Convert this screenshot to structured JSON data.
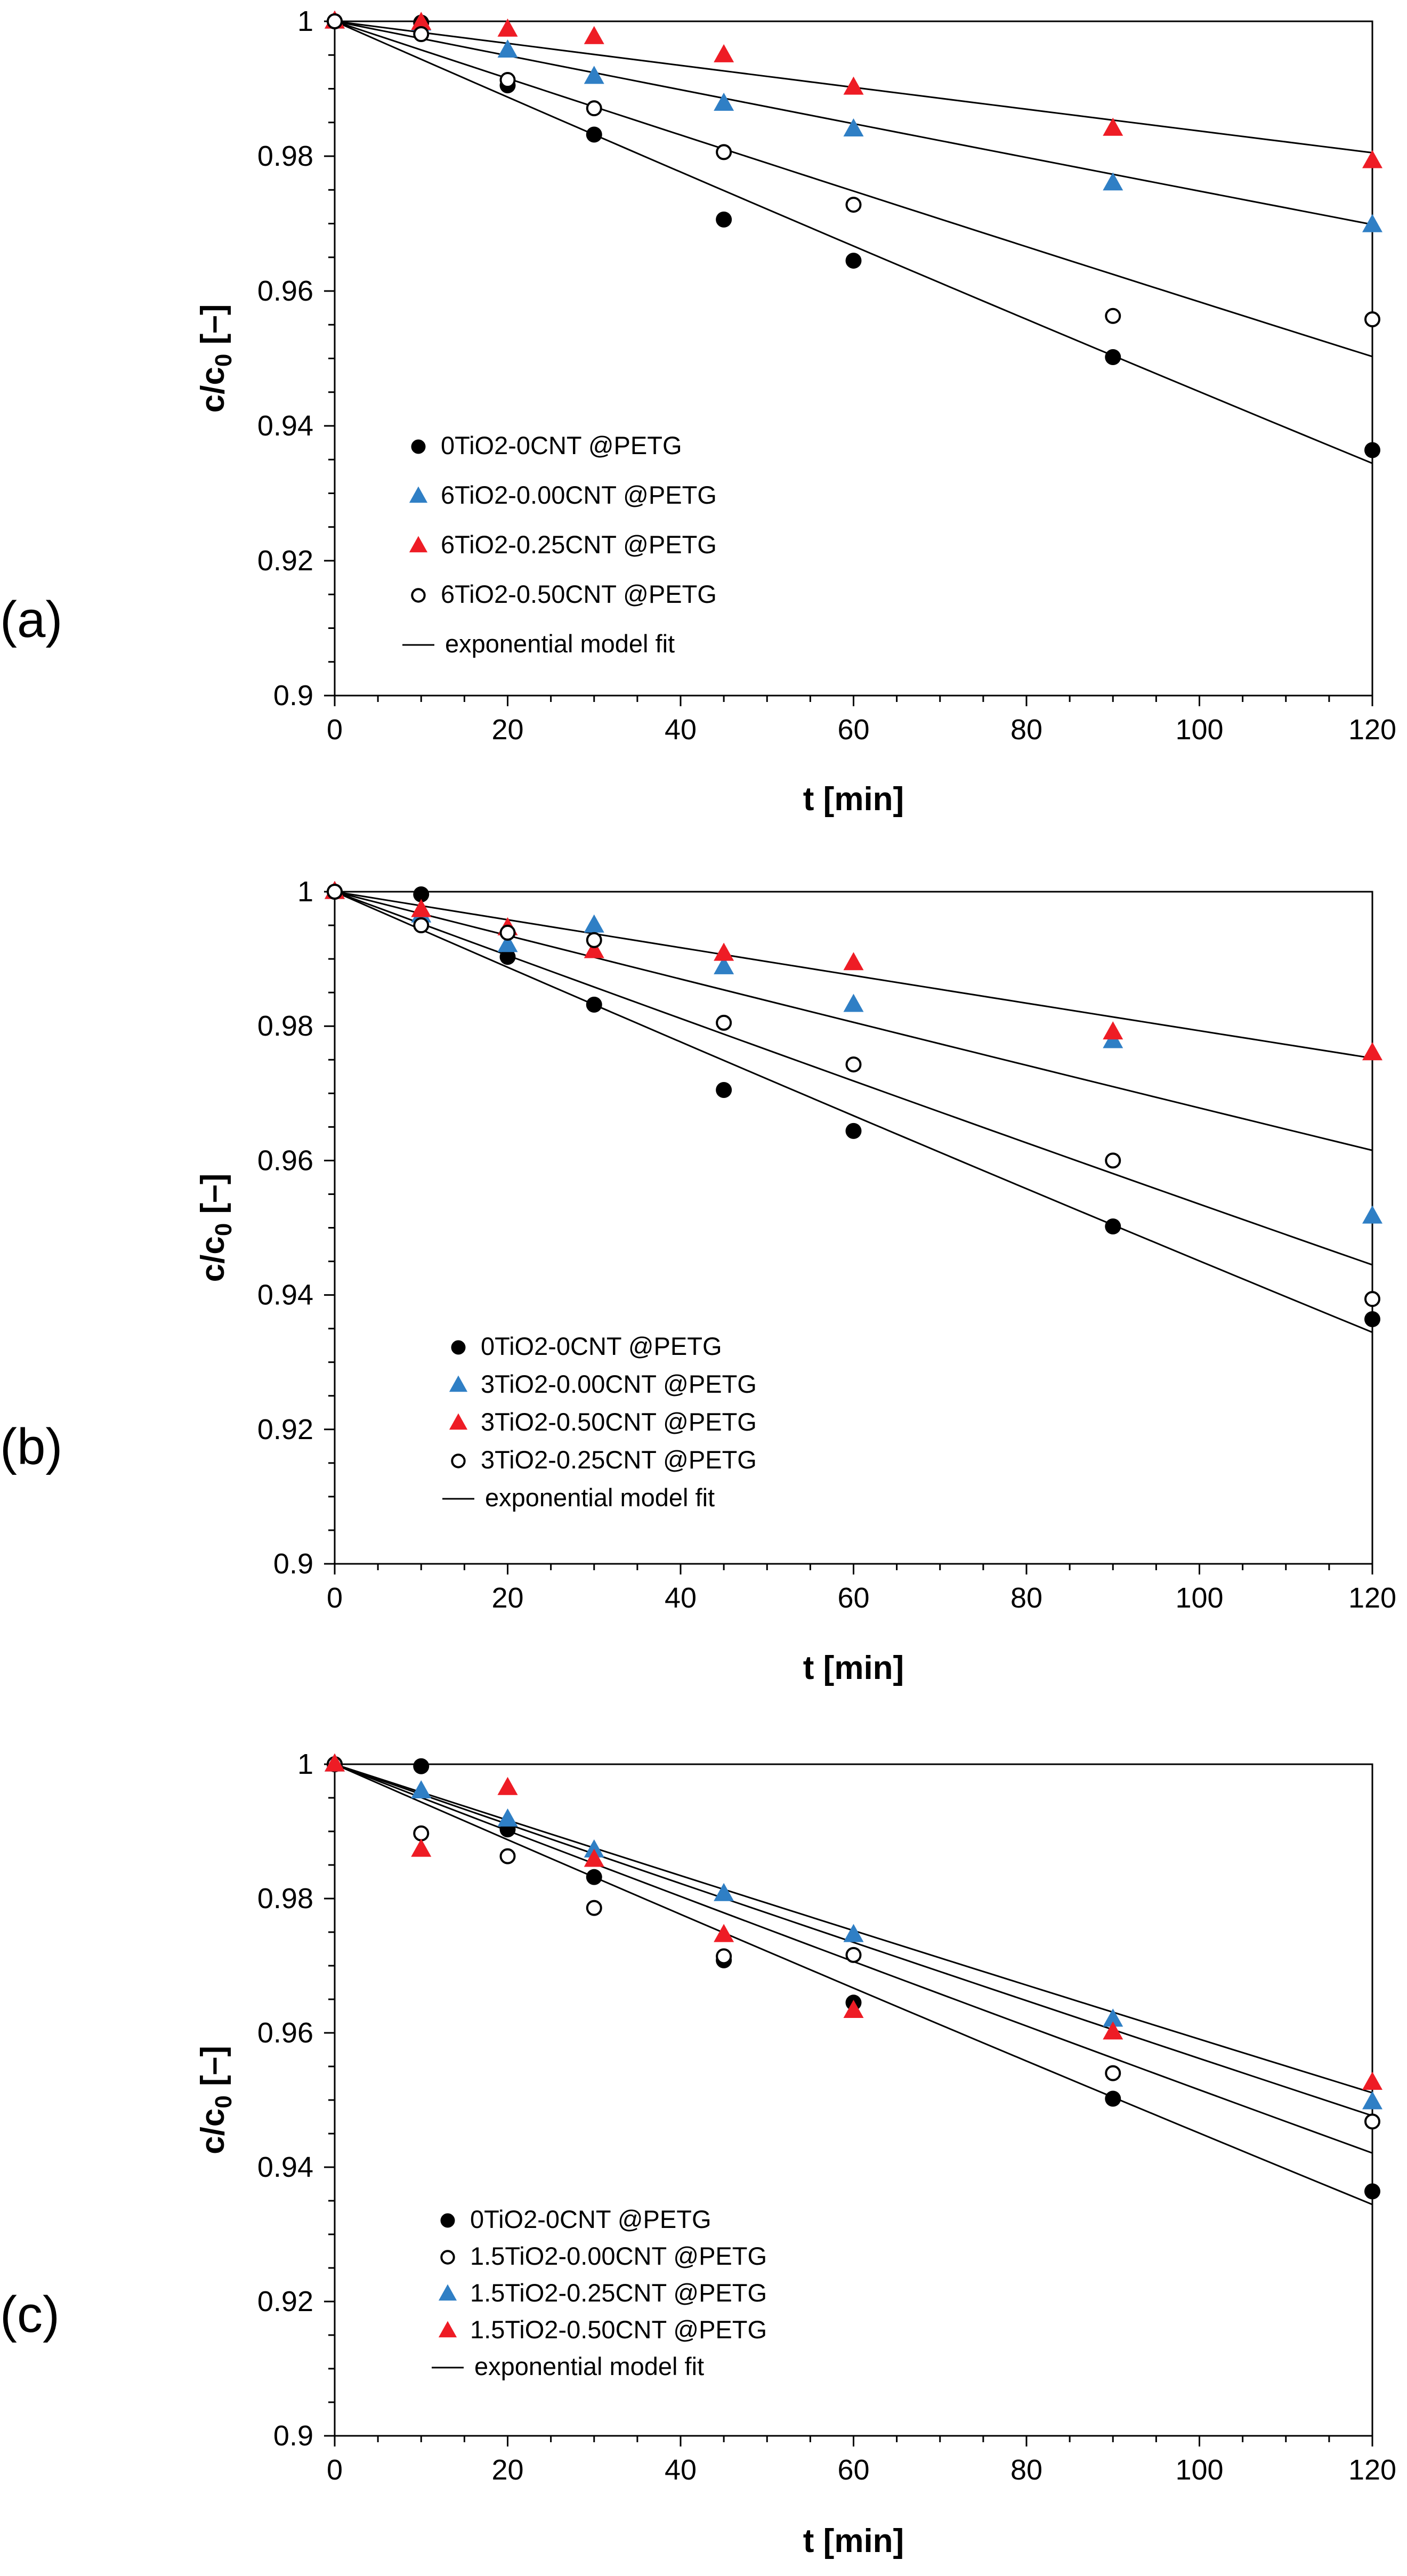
{
  "colors": {
    "black": "#000000",
    "blue": "#2f7fc5",
    "red": "#ee1c25"
  },
  "chart_data": [
    {
      "panel_label": "(a)",
      "type": "scatter",
      "xlabel": "t [min]",
      "ylabel": "c/c",
      "ylabel_sub": "0",
      "ylabel_suffix": " [–]",
      "xlim": [
        0,
        120
      ],
      "ylim": [
        0.9,
        1.0
      ],
      "xticks": [
        0,
        20,
        40,
        60,
        80,
        100,
        120
      ],
      "yticks": [
        0.9,
        0.92,
        0.94,
        0.96,
        0.98,
        1
      ],
      "ytick_labels": [
        "0.9",
        "0.92",
        "0.94",
        "0.96",
        "0.98",
        "1"
      ],
      "x": [
        0,
        10,
        20,
        30,
        45,
        60,
        90,
        120
      ],
      "series": [
        {
          "name": "0TiO2-0CNT @PETG",
          "marker": "filled-circle",
          "color": "#000000",
          "k": 0.000565,
          "values": [
            1.0,
            0.9998,
            0.9905,
            0.9832,
            0.9706,
            0.9645,
            0.9502,
            0.9364
          ]
        },
        {
          "name": "6TiO2-0.00CNT @PETG",
          "marker": "triangle",
          "color": "#2f7fc5",
          "k": 0.000255,
          "values": [
            1.0,
            0.9997,
            0.9957,
            0.9918,
            0.9878,
            0.984,
            0.976,
            0.9698
          ]
        },
        {
          "name": "6TiO2-0.25CNT @PETG",
          "marker": "triangle",
          "color": "#ee1c25",
          "k": 0.000164,
          "values": [
            1.0,
            0.9998,
            0.9988,
            0.9977,
            0.995,
            0.9902,
            0.9841,
            0.9793
          ]
        },
        {
          "name": "6TiO2-0.50CNT @PETG",
          "marker": "open-circle",
          "color": "#000000",
          "k": 0.000425,
          "values": [
            1.0,
            0.9981,
            0.9913,
            0.9871,
            0.9806,
            0.9728,
            0.9563,
            0.9558
          ]
        }
      ],
      "legend": [
        "0TiO2-0CNT @PETG",
        "6TiO2-0.00CNT @PETG",
        "6TiO2-0.25CNT @PETG",
        "6TiO2-0.50CNT @PETG",
        "exponential model fit"
      ]
    },
    {
      "panel_label": "(b)",
      "type": "scatter",
      "xlabel": "t [min]",
      "ylabel": "c/c",
      "ylabel_sub": "0",
      "ylabel_suffix": " [–]",
      "xlim": [
        0,
        120
      ],
      "ylim": [
        0.9,
        1.0
      ],
      "xticks": [
        0,
        20,
        40,
        60,
        80,
        100,
        120
      ],
      "yticks": [
        0.9,
        0.92,
        0.94,
        0.96,
        0.98,
        1
      ],
      "ytick_labels": [
        "0.9",
        "0.92",
        "0.94",
        "0.96",
        "0.98",
        "1"
      ],
      "x": [
        0,
        10,
        20,
        30,
        45,
        60,
        90,
        120
      ],
      "series": [
        {
          "name": "0TiO2-0CNT @PETG",
          "marker": "filled-circle",
          "color": "#000000",
          "k": 0.000565,
          "values": [
            1.0,
            0.9996,
            0.9903,
            0.9832,
            0.9705,
            0.9644,
            0.9502,
            0.9364
          ]
        },
        {
          "name": "3TiO2-0.00CNT @PETG",
          "marker": "triangle",
          "color": "#2f7fc5",
          "k": 0.000327,
          "values": [
            1.0,
            0.9965,
            0.9921,
            0.995,
            0.9888,
            0.9832,
            0.9778,
            0.9517
          ]
        },
        {
          "name": "3TiO2-0.50CNT @PETG",
          "marker": "triangle",
          "color": "#ee1c25",
          "k": 0.000209,
          "values": [
            1.0,
            0.9973,
            0.9946,
            0.9912,
            0.9908,
            0.9894,
            0.9791,
            0.976
          ]
        },
        {
          "name": "3TiO2-0.25CNT @PETG",
          "marker": "open-circle",
          "color": "#000000",
          "k": 0.000476,
          "values": [
            1.0,
            0.995,
            0.9939,
            0.9928,
            0.9805,
            0.9743,
            0.96,
            0.9394
          ]
        }
      ],
      "legend": [
        "0TiO2-0CNT @PETG",
        "3TiO2-0.00CNT @PETG",
        "3TiO2-0.50CNT @PETG",
        "3TiO2-0.25CNT @PETG",
        "exponential model fit"
      ]
    },
    {
      "panel_label": "(c)",
      "type": "scatter",
      "xlabel": "t [min]",
      "ylabel": "c/c",
      "ylabel_sub": "0",
      "ylabel_suffix": " [–]",
      "xlim": [
        0,
        120
      ],
      "ylim": [
        0.9,
        1.0
      ],
      "xticks": [
        0,
        20,
        40,
        60,
        80,
        100,
        120
      ],
      "yticks": [
        0.9,
        0.92,
        0.94,
        0.96,
        0.98,
        1
      ],
      "ytick_labels": [
        "0.9",
        "0.92",
        "0.94",
        "0.96",
        "0.98",
        "1"
      ],
      "x": [
        0,
        10,
        20,
        30,
        45,
        60,
        90,
        120
      ],
      "series": [
        {
          "name": "0TiO2-0CNT @PETG",
          "marker": "filled-circle",
          "color": "#000000",
          "k": 0.000565,
          "values": [
            1.0,
            0.9997,
            0.9903,
            0.9832,
            0.9708,
            0.9645,
            0.9502,
            0.9364
          ]
        },
        {
          "name": "1.5TiO2-0.00CNT @PETG",
          "marker": "open-circle",
          "color": "#000000",
          "k": 0.000497,
          "values": [
            1.0,
            0.9897,
            0.9863,
            0.9786,
            0.9714,
            0.9716,
            0.954,
            0.9468
          ]
        },
        {
          "name": "1.5TiO2-0.25CNT @PETG",
          "marker": "triangle",
          "color": "#2f7fc5",
          "k": 0.000418,
          "values": [
            1.0,
            0.996,
            0.9918,
            0.9872,
            0.9807,
            0.9746,
            0.962,
            0.9497
          ]
        },
        {
          "name": "1.5TiO2-0.50CNT @PETG",
          "marker": "triangle",
          "color": "#ee1c25",
          "k": 0.000448,
          "values": [
            1.0,
            0.9873,
            0.9965,
            0.9858,
            0.9746,
            0.9633,
            0.9601,
            0.9526
          ]
        }
      ],
      "legend": [
        "0TiO2-0CNT @PETG",
        "1.5TiO2-0.00CNT @PETG",
        "1.5TiO2-0.25CNT @PETG",
        "1.5TiO2-0.50CNT @PETG",
        "exponential model fit"
      ]
    }
  ]
}
